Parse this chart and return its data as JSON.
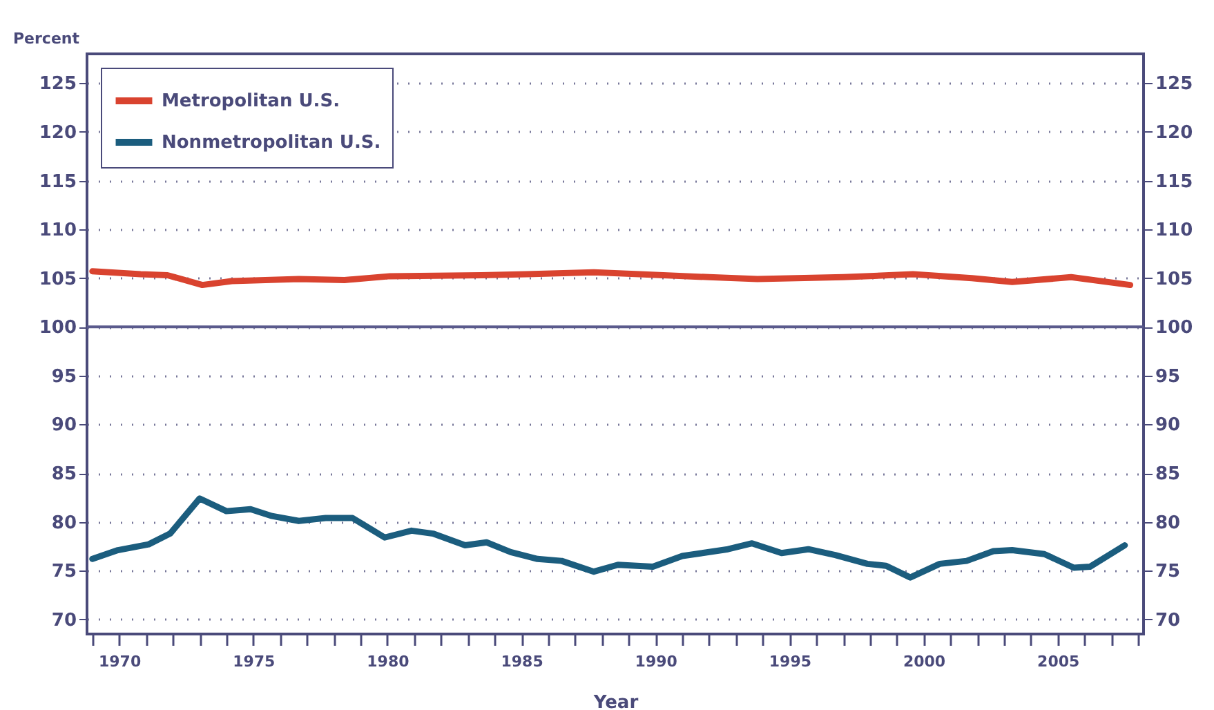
{
  "chart_data": {
    "type": "line",
    "xlabel": "Year",
    "ylabel": "Percent",
    "xlim": [
      1968.8,
      2008.2
    ],
    "ylim": [
      68.5,
      128
    ],
    "y2lim": [
      68.5,
      128
    ],
    "xticks": [
      {
        "value": 1969,
        "label": null
      },
      1970,
      {
        "value": 1971,
        "label": null
      },
      {
        "value": 1972,
        "label": null
      },
      {
        "value": 1973,
        "label": null
      },
      {
        "value": 1974,
        "label": null
      },
      1975,
      {
        "value": 1976,
        "label": null
      },
      {
        "value": 1977,
        "label": null
      },
      {
        "value": 1978,
        "label": null
      },
      {
        "value": 1979,
        "label": null
      },
      1980,
      {
        "value": 1981,
        "label": null
      },
      {
        "value": 1982,
        "label": null
      },
      {
        "value": 1983,
        "label": null
      },
      {
        "value": 1984,
        "label": null
      },
      1985,
      {
        "value": 1986,
        "label": null
      },
      {
        "value": 1987,
        "label": null
      },
      {
        "value": 1988,
        "label": null
      },
      {
        "value": 1989,
        "label": null
      },
      1990,
      {
        "value": 1991,
        "label": null
      },
      {
        "value": 1992,
        "label": null
      },
      {
        "value": 1993,
        "label": null
      },
      {
        "value": 1994,
        "label": null
      },
      1995,
      {
        "value": 1996,
        "label": null
      },
      {
        "value": 1997,
        "label": null
      },
      {
        "value": 1998,
        "label": null
      },
      {
        "value": 1999,
        "label": null
      },
      2000,
      {
        "value": 2001,
        "label": null
      },
      {
        "value": 2002,
        "label": null
      },
      {
        "value": 2003,
        "label": null
      },
      {
        "value": 2004,
        "label": null
      },
      2005,
      {
        "value": 2006,
        "label": null
      },
      {
        "value": 2007,
        "label": null
      },
      {
        "value": 2008,
        "label": null
      }
    ],
    "yticks": [
      70,
      75,
      80,
      85,
      90,
      95,
      100,
      105,
      110,
      115,
      120,
      125
    ],
    "y2ticks": [
      70,
      75,
      80,
      85,
      90,
      95,
      100,
      105,
      110,
      115,
      120,
      125
    ],
    "grid": "y",
    "legend": "top left",
    "marker": "none",
    "line_style": "solid",
    "ref_lines": [
      {
        "axis": "y",
        "value": 100,
        "color": "#5a5a8c"
      }
    ],
    "series": [
      {
        "name": "Metropolitan U.S.",
        "color": "#d9432f",
        "x": [
          1969.0,
          1970.8,
          1971.8,
          1973.1,
          1974.2,
          1976.7,
          1978.4,
          1980.1,
          1983.5,
          1985.2,
          1987.7,
          1989.4,
          1992.0,
          1993.8,
          1997.0,
          1999.6,
          2001.8,
          2003.3,
          2005.5,
          2007.7
        ],
        "values": [
          105.7,
          105.4,
          105.3,
          104.3,
          104.7,
          104.9,
          104.8,
          105.2,
          105.3,
          105.4,
          105.6,
          105.4,
          105.1,
          104.9,
          105.1,
          105.4,
          105.0,
          104.6,
          105.1,
          104.3
        ]
      },
      {
        "name": "Nonmetropolitan U.S.",
        "color": "#1b5d7e",
        "x": [
          1969.0,
          1969.95,
          1971.1,
          1971.9,
          1973.0,
          1974.0,
          1974.9,
          1975.7,
          1976.7,
          1977.7,
          1978.7,
          1979.9,
          1980.9,
          1981.7,
          1982.9,
          1983.7,
          1984.6,
          1985.6,
          1986.5,
          1987.7,
          1988.6,
          1989.9,
          1991.0,
          1992.7,
          1993.6,
          1994.7,
          1995.7,
          1996.7,
          1997.9,
          1998.6,
          1999.5,
          2000.6,
          2001.6,
          2002.6,
          2003.3,
          2004.5,
          2005.6,
          2006.2,
          2007.5
        ],
        "values": [
          76.2,
          77.1,
          77.7,
          78.8,
          82.4,
          81.1,
          81.3,
          80.6,
          80.1,
          80.4,
          80.4,
          78.4,
          79.1,
          78.8,
          77.6,
          77.9,
          76.9,
          76.2,
          76.0,
          74.9,
          75.6,
          75.4,
          76.5,
          77.2,
          77.8,
          76.8,
          77.2,
          76.6,
          75.7,
          75.5,
          74.3,
          75.7,
          76.0,
          77.0,
          77.1,
          76.7,
          75.3,
          75.4,
          77.6
        ]
      }
    ]
  }
}
